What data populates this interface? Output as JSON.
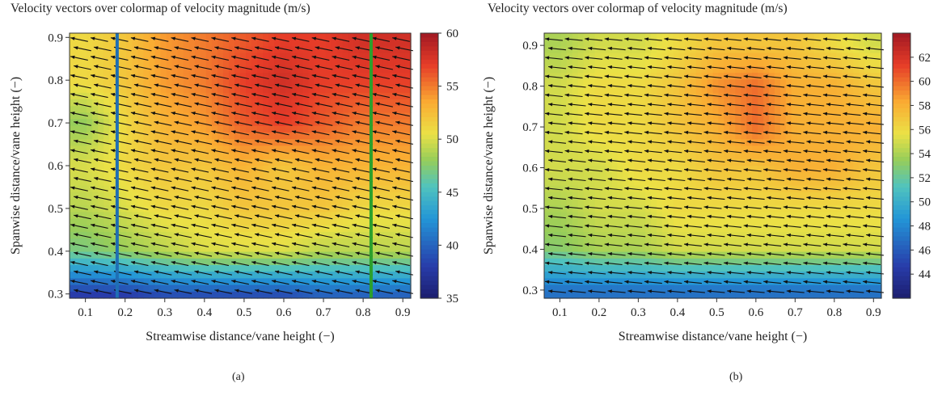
{
  "chart_data": [
    {
      "type": "heatmap",
      "panel_label": "(a)",
      "title": "Velocity vectors over colormap of velocity magnitude (m/s)",
      "xlabel": "Streamwise distance/vane height (−)",
      "ylabel": "Spanwise distance/vane height (−)",
      "xlim": [
        0.06,
        0.92
      ],
      "ylim": [
        0.29,
        0.91
      ],
      "xticks": [
        0.1,
        0.2,
        0.3,
        0.4,
        0.5,
        0.6,
        0.7,
        0.8,
        0.9
      ],
      "yticks": [
        0.3,
        0.4,
        0.5,
        0.6,
        0.7,
        0.8,
        0.9
      ],
      "colorbar": {
        "min": 35,
        "max": 60,
        "ticks": [
          35,
          40,
          45,
          50,
          55,
          60
        ]
      },
      "vertical_lines": [
        {
          "x": 0.18,
          "color": "#1f6fb4"
        },
        {
          "x": 0.82,
          "color": "#2ca02c"
        }
      ],
      "vector_angle_deg": 12,
      "field": {
        "x": [
          0.1,
          0.2,
          0.3,
          0.4,
          0.5,
          0.6,
          0.7,
          0.8,
          0.9
        ],
        "y": [
          0.3,
          0.4,
          0.5,
          0.6,
          0.7,
          0.8,
          0.9
        ],
        "v": [
          [
            38,
            38,
            39,
            39,
            39,
            39,
            40,
            40,
            40
          ],
          [
            47,
            48,
            49,
            50,
            50,
            50,
            49,
            49,
            49
          ],
          [
            49,
            50,
            51,
            51,
            52,
            52,
            52,
            51,
            51
          ],
          [
            50,
            51,
            52,
            52,
            53,
            52,
            53,
            53,
            53
          ],
          [
            48,
            51,
            53,
            54,
            56,
            57,
            56,
            55,
            55
          ],
          [
            51,
            52,
            54,
            55,
            57,
            58,
            57,
            57,
            57
          ],
          [
            51,
            52,
            54,
            55,
            56,
            57,
            57,
            58,
            58
          ]
        ]
      }
    },
    {
      "type": "heatmap",
      "panel_label": "(b)",
      "title": "Velocity vectors over colormap of velocity magnitude (m/s)",
      "xlabel": "Streamwise distance/vane height (−)",
      "ylabel": "Spanwise distance/vane height (−)",
      "xlim": [
        0.06,
        0.92
      ],
      "ylim": [
        0.28,
        0.93
      ],
      "xticks": [
        0.1,
        0.2,
        0.3,
        0.4,
        0.5,
        0.6,
        0.7,
        0.8,
        0.9
      ],
      "yticks": [
        0.3,
        0.4,
        0.5,
        0.6,
        0.7,
        0.8,
        0.9
      ],
      "colorbar": {
        "min": 42,
        "max": 64,
        "ticks": [
          44,
          46,
          48,
          50,
          52,
          54,
          56,
          58,
          60,
          62
        ]
      },
      "vertical_lines": [],
      "vector_angle_deg": 6,
      "field": {
        "x": [
          0.1,
          0.2,
          0.3,
          0.4,
          0.5,
          0.6,
          0.7,
          0.8,
          0.9
        ],
        "y": [
          0.3,
          0.4,
          0.5,
          0.6,
          0.7,
          0.8,
          0.9
        ],
        "v": [
          [
            47,
            47,
            47,
            47,
            47,
            47,
            47,
            47,
            47
          ],
          [
            53,
            54,
            54,
            55,
            55,
            55,
            55,
            55,
            55
          ],
          [
            54,
            55,
            55,
            56,
            56,
            56,
            56,
            56,
            56
          ],
          [
            55,
            55,
            56,
            56,
            57,
            57,
            58,
            58,
            57
          ],
          [
            55,
            56,
            56,
            57,
            58,
            60,
            58,
            58,
            58
          ],
          [
            55,
            56,
            56,
            57,
            59,
            60,
            58,
            58,
            57
          ],
          [
            54,
            55,
            55,
            56,
            57,
            57,
            57,
            56,
            55
          ]
        ]
      }
    }
  ]
}
